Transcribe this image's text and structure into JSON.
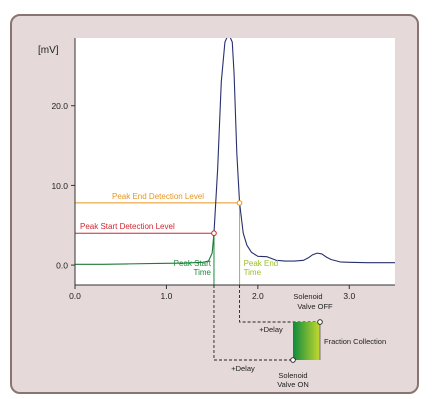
{
  "colors": {
    "background_panel": "#e6d9da",
    "panel_border": "#8a7472",
    "plot_area": "#ffffff",
    "trace": "#27306e",
    "peak_start": "#d2262f",
    "peak_end": "#e8951d",
    "start_time": "#1a8a3a",
    "end_time": "#9bbd2a",
    "dashed": "#222222",
    "fraction_gradient_start": "#0f8a3c",
    "fraction_gradient_end": "#c5d92f"
  },
  "chart_data": {
    "type": "line",
    "ylabel": "[mV]",
    "xlim": [
      0.0,
      3.5
    ],
    "ylim": [
      -2.5,
      28.5
    ],
    "x_ticks": [
      {
        "value": 0.0,
        "label": "0.0"
      },
      {
        "value": 1.0,
        "label": "1.0"
      },
      {
        "value": 2.0,
        "label": "2.0"
      },
      {
        "value": 3.0,
        "label": "3.0"
      }
    ],
    "y_ticks": [
      {
        "value": 0.0,
        "label": "0.0"
      },
      {
        "value": 10.0,
        "label": "10.0"
      },
      {
        "value": 20.0,
        "label": "20.0"
      }
    ],
    "grid": false,
    "trace": {
      "x": [
        0.0,
        0.3,
        0.6,
        0.9,
        1.2,
        1.4,
        1.46,
        1.5,
        1.52,
        1.56,
        1.6,
        1.64,
        1.68,
        1.72,
        1.74,
        1.77,
        1.8,
        1.84,
        1.88,
        1.93,
        2.0,
        2.1,
        2.2,
        2.3,
        2.4,
        2.5,
        2.55,
        2.6,
        2.65,
        2.7,
        2.75,
        2.8,
        2.9,
        3.0,
        3.2,
        3.5
      ],
      "y": [
        0.1,
        0.1,
        0.15,
        0.2,
        0.25,
        0.35,
        0.5,
        1.5,
        4.0,
        12.0,
        23.0,
        28.0,
        29.0,
        28.0,
        24.0,
        14.0,
        7.8,
        4.0,
        2.5,
        1.6,
        1.1,
        1.05,
        0.6,
        0.5,
        0.5,
        0.6,
        0.9,
        1.3,
        1.5,
        1.4,
        1.0,
        0.7,
        0.4,
        0.35,
        0.3,
        0.3
      ]
    },
    "peak_start_level": {
      "label": "Peak Start Detection Level",
      "y": 4.0,
      "x_marker": 1.52
    },
    "peak_end_level": {
      "label": "Peak End Detection Level",
      "y": 7.8,
      "x_marker": 1.8
    },
    "peak_start_time": {
      "label_line1": "Peak Start",
      "label_line2": "Time",
      "x": 1.52
    },
    "peak_end_time": {
      "label_line1": "Peak End",
      "label_line2": "Time",
      "x": 1.8
    },
    "fraction_collection": {
      "label": "Fraction Collection",
      "valve_off_line1": "Solenoid",
      "valve_off_line2": "Valve OFF",
      "valve_on_line1": "Solenoid",
      "valve_on_line2": "Valve ON",
      "delay_label": "+Delay"
    }
  }
}
